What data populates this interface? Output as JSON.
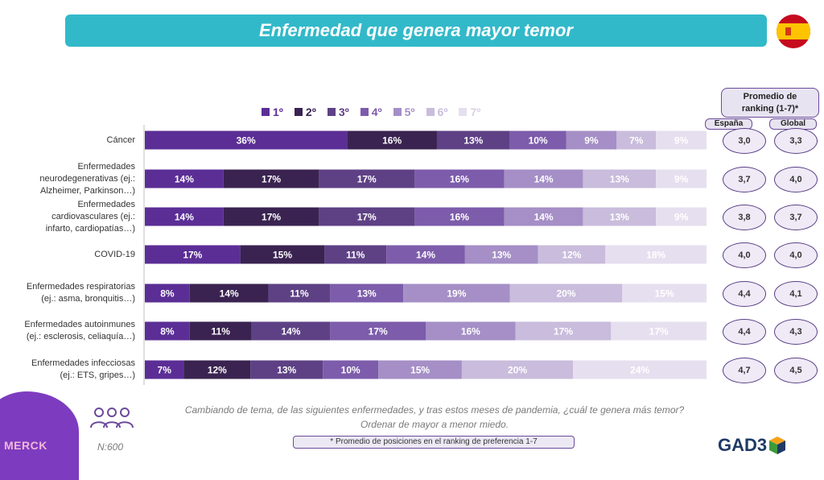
{
  "title": "Enfermedad que genera mayor temor",
  "legend": [
    "1º",
    "2º",
    "3º",
    "4º",
    "5º",
    "6º",
    "7º"
  ],
  "colors": [
    "#5b2e96",
    "#3a2351",
    "#5e4185",
    "#7d5cab",
    "#a58fc6",
    "#c9bcdc",
    "#e6dfef"
  ],
  "chart_data": {
    "type": "bar",
    "orientation": "horizontal",
    "stacked": true,
    "categories": [
      "Cáncer",
      "Enfermedades neurodegenerativas (ej.: Alzheimer, Parkinson…)",
      "Enfermedades cardiovasculares (ej.: infarto, cardiopatías…)",
      "COVID-19",
      "Enfermedades respiratorias (ej.: asma, bronquitis…)",
      "Enfermedades autoinmunes (ej.: esclerosis, celiaquía…)",
      "Enfermedades infecciosas (ej.: ETS, gripes…)"
    ],
    "series": [
      {
        "name": "1º",
        "values": [
          36,
          14,
          14,
          17,
          8,
          8,
          7
        ]
      },
      {
        "name": "2º",
        "values": [
          16,
          17,
          17,
          15,
          14,
          11,
          12
        ]
      },
      {
        "name": "3º",
        "values": [
          13,
          17,
          17,
          11,
          11,
          14,
          13
        ]
      },
      {
        "name": "4º",
        "values": [
          10,
          16,
          16,
          14,
          13,
          17,
          10
        ]
      },
      {
        "name": "5º",
        "values": [
          9,
          14,
          14,
          13,
          19,
          16,
          15
        ]
      },
      {
        "name": "6º",
        "values": [
          7,
          13,
          13,
          12,
          20,
          17,
          20
        ]
      },
      {
        "name": "7º",
        "values": [
          9,
          9,
          9,
          18,
          15,
          17,
          24
        ]
      }
    ],
    "value_suffix": "%"
  },
  "category_lines": [
    [
      "Cáncer"
    ],
    [
      "Enfermedades",
      "neurodegenerativas (ej.:",
      "Alzheimer, Parkinson…)"
    ],
    [
      "Enfermedades",
      "cardiovasculares (ej.:",
      "infarto, cardiopatías…)"
    ],
    [
      "COVID-19"
    ],
    [
      "Enfermedades respiratorias",
      "(ej.: asma, bronquitis…)"
    ],
    [
      "Enfermedades autoinmunes",
      "(ej.: esclerosis, celiaquía…)"
    ],
    [
      "Enfermedades infecciosas",
      "(ej.: ETS, gripes…)"
    ]
  ],
  "ranking": {
    "header_line1": "Promedio de",
    "header_line2": "ranking (1-7)*",
    "col_espana": "España",
    "col_global": "Global",
    "espana": [
      "3,0",
      "3,7",
      "3,8",
      "4,0",
      "4,4",
      "4,4",
      "4,7"
    ],
    "global": [
      "3,3",
      "4,0",
      "3,7",
      "4,0",
      "4,1",
      "4,3",
      "4,5"
    ]
  },
  "footer": {
    "brand": "MERCK",
    "sample": "N:600",
    "question": "Cambiando de tema, de las siguientes enfermedades, y tras estos meses de pandemia, ¿cuál te genera más temor? Ordenar de mayor a menor miedo.",
    "footnote": "* Promedio de posiciones en el ranking de preferencia 1-7",
    "logo": "GAD3"
  }
}
